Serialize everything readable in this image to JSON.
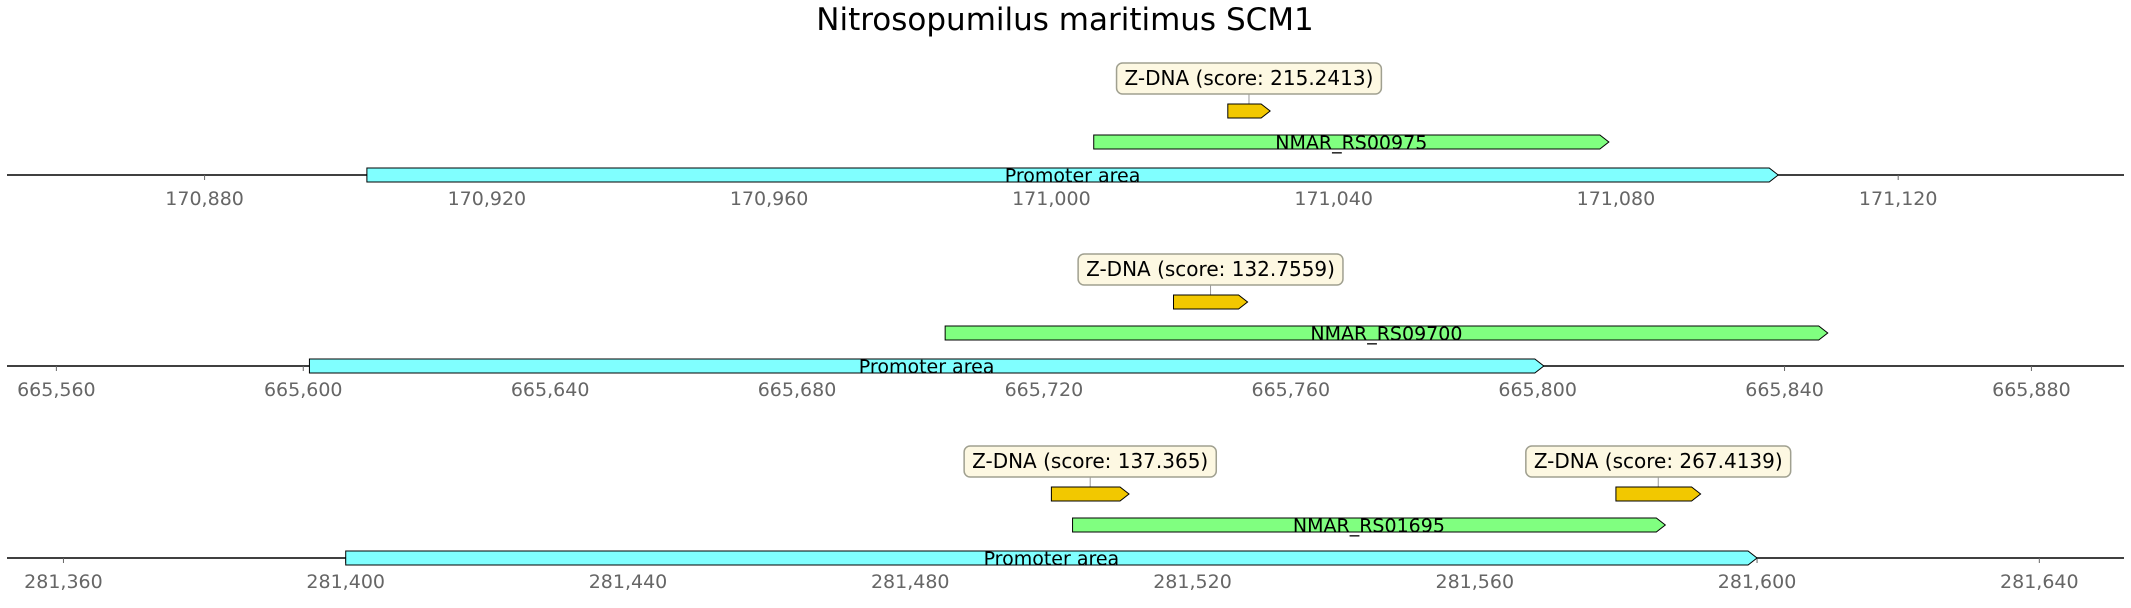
{
  "title": "Nitrosopumilus maritimus SCM1",
  "colors": {
    "promoter": "#80ffff",
    "gene": "#80ff80",
    "zdna": "#f2c800",
    "box_fill": "#fdf8e2",
    "box_stroke": "#a0a090",
    "tick_text": "#666666"
  },
  "chart_data": [
    {
      "type": "track",
      "xlim": [
        170852,
        171152
      ],
      "ticks": [
        170880,
        170920,
        170960,
        171000,
        171040,
        171080,
        171120
      ],
      "tick_labels": [
        "170,880",
        "170,920",
        "170,960",
        "171,000",
        "171,040",
        "171,080",
        "171,120"
      ],
      "features": [
        {
          "kind": "promoter",
          "label": "Promoter area",
          "start": 170903,
          "end": 171103
        },
        {
          "kind": "gene",
          "label": "NMAR_RS00975",
          "start": 171006,
          "end": 171079
        },
        {
          "kind": "zdna",
          "label": "Z-DNA (score: 215.2413)",
          "start": 171025,
          "end": 171031
        }
      ]
    },
    {
      "type": "track",
      "xlim": [
        665552,
        665895
      ],
      "ticks": [
        665560,
        665600,
        665640,
        665680,
        665720,
        665760,
        665800,
        665840,
        665880
      ],
      "tick_labels": [
        "665,560",
        "665,600",
        "665,640",
        "665,680",
        "665,720",
        "665,760",
        "665,800",
        "665,840",
        "665,880"
      ],
      "features": [
        {
          "kind": "promoter",
          "label": "Promoter area",
          "start": 665601,
          "end": 665801
        },
        {
          "kind": "gene",
          "label": "NMAR_RS09700",
          "start": 665704,
          "end": 665847
        },
        {
          "kind": "zdna",
          "label": "Z-DNA (score: 132.7559)",
          "start": 665741,
          "end": 665753
        }
      ]
    },
    {
      "type": "track",
      "xlim": [
        281352,
        281652
      ],
      "ticks": [
        281360,
        281400,
        281440,
        281480,
        281520,
        281560,
        281600,
        281640
      ],
      "tick_labels": [
        "281,360",
        "281,400",
        "281,440",
        "281,480",
        "281,520",
        "281,560",
        "281,600",
        "281,640"
      ],
      "features": [
        {
          "kind": "promoter",
          "label": "Promoter area",
          "start": 281400,
          "end": 281600
        },
        {
          "kind": "gene",
          "label": "NMAR_RS01695",
          "start": 281503,
          "end": 281587
        },
        {
          "kind": "zdna",
          "label": "Z-DNA (score: 137.365)",
          "start": 281500,
          "end": 281511
        },
        {
          "kind": "zdna",
          "label": "Z-DNA (score: 267.4139)",
          "start": 281580,
          "end": 281592
        }
      ]
    }
  ]
}
